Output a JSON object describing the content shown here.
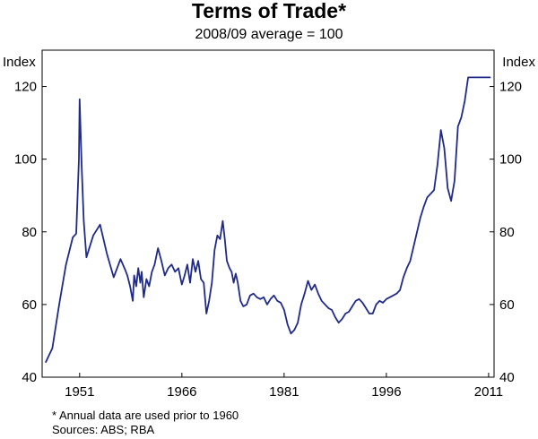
{
  "chart_data": {
    "type": "line",
    "title": "Terms of Trade*",
    "subtitle": "2008/09 average = 100",
    "ylabel_left": "Index",
    "ylabel_right": "Index",
    "ylim": [
      40,
      130
    ],
    "y_ticks": [
      40,
      60,
      80,
      100,
      120
    ],
    "xlim": [
      1945.5,
      2011.8
    ],
    "x_ticks": [
      1951,
      1966,
      1981,
      1996,
      2011
    ],
    "grid": false,
    "color": "#1f2a8a",
    "series": [
      {
        "x": [
          1946.0,
          1947.0,
          1948.0,
          1949.0,
          1950.0,
          1950.5,
          1950.9,
          1951.0,
          1951.3,
          1951.6,
          1952.0,
          1953.0,
          1954.0,
          1955.0,
          1956.0,
          1957.0,
          1957.7,
          1958.0,
          1958.4,
          1958.8,
          1959.0,
          1959.3,
          1959.6,
          1959.9,
          1960.1,
          1960.4,
          1960.8,
          1961.2,
          1961.6,
          1962.0,
          1962.5,
          1963.0,
          1963.5,
          1964.0,
          1964.5,
          1965.0,
          1965.5,
          1966.0,
          1966.4,
          1966.8,
          1967.2,
          1967.6,
          1968.0,
          1968.4,
          1968.8,
          1969.2,
          1969.6,
          1970.0,
          1970.4,
          1970.8,
          1971.2,
          1971.6,
          1972.0,
          1972.3,
          1972.6,
          1973.0,
          1973.3,
          1973.6,
          1973.9,
          1974.2,
          1974.6,
          1975.0,
          1975.5,
          1976.0,
          1976.5,
          1977.0,
          1977.5,
          1978.0,
          1978.5,
          1979.0,
          1979.5,
          1980.0,
          1980.5,
          1981.0,
          1981.5,
          1982.0,
          1982.5,
          1983.0,
          1983.5,
          1984.0,
          1984.5,
          1985.0,
          1985.5,
          1986.0,
          1986.5,
          1987.0,
          1987.5,
          1988.0,
          1988.5,
          1989.0,
          1989.5,
          1990.0,
          1990.5,
          1991.0,
          1991.5,
          1992.0,
          1992.5,
          1993.0,
          1993.5,
          1994.0,
          1994.5,
          1995.0,
          1995.5,
          1996.0,
          1996.5,
          1997.0,
          1997.5,
          1998.0,
          1998.5,
          1999.0,
          1999.5,
          2000.0,
          2000.5,
          2001.0,
          2001.5,
          2002.0,
          2002.5,
          2003.0,
          2003.5,
          2004.0,
          2004.5,
          2005.0,
          2005.5,
          2006.0,
          2006.5,
          2007.0,
          2007.5,
          2008.0,
          2008.3,
          2008.6,
          2008.9,
          2009.2,
          2009.5,
          2009.8,
          2010.1,
          2010.4,
          2010.7,
          2011.0,
          2011.3
        ],
        "y": [
          44.0,
          48.0,
          60.0,
          71.0,
          78.5,
          79.5,
          100.0,
          116.5,
          98.0,
          83.0,
          73.0,
          79.0,
          82.0,
          74.0,
          67.5,
          72.5,
          69.5,
          68.0,
          65.0,
          61.0,
          68.0,
          65.0,
          70.0,
          66.0,
          69.0,
          62.0,
          67.0,
          65.0,
          69.0,
          71.0,
          75.5,
          72.0,
          68.0,
          70.0,
          71.0,
          69.0,
          70.0,
          65.5,
          68.0,
          71.0,
          66.0,
          72.5,
          69.0,
          72.0,
          67.0,
          66.0,
          57.5,
          61.0,
          66.0,
          75.0,
          79.0,
          78.0,
          83.0,
          78.0,
          72.0,
          70.0,
          69.0,
          66.0,
          68.5,
          66.0,
          61.0,
          59.5,
          60.0,
          62.5,
          63.0,
          62.0,
          61.5,
          62.0,
          60.0,
          61.5,
          62.5,
          61.0,
          60.5,
          58.5,
          54.5,
          52.0,
          53.0,
          55.0,
          60.0,
          63.0,
          66.5,
          64.0,
          65.5,
          63.0,
          61.0,
          60.0,
          59.0,
          58.5,
          56.5,
          55.0,
          56.0,
          57.5,
          58.0,
          59.5,
          61.0,
          61.5,
          60.5,
          59.0,
          57.5,
          57.5,
          60.0,
          61.0,
          60.5,
          61.5,
          62.0,
          62.5,
          63.0,
          64.0,
          67.5,
          70.0,
          72.0,
          76.0,
          80.0,
          84.0,
          87.0,
          89.5,
          90.5,
          91.5,
          98.5,
          108.0,
          103.0,
          92.0,
          88.5,
          94.0,
          109.0,
          111.5,
          116.0,
          122.5,
          122.5,
          122.5,
          122.5,
          122.5,
          122.5,
          122.5,
          122.5,
          122.5,
          122.5,
          122.5,
          122.5
        ]
      }
    ]
  },
  "footnote": "*   Annual data are used prior to 1960",
  "sources": "Sources: ABS; RBA"
}
